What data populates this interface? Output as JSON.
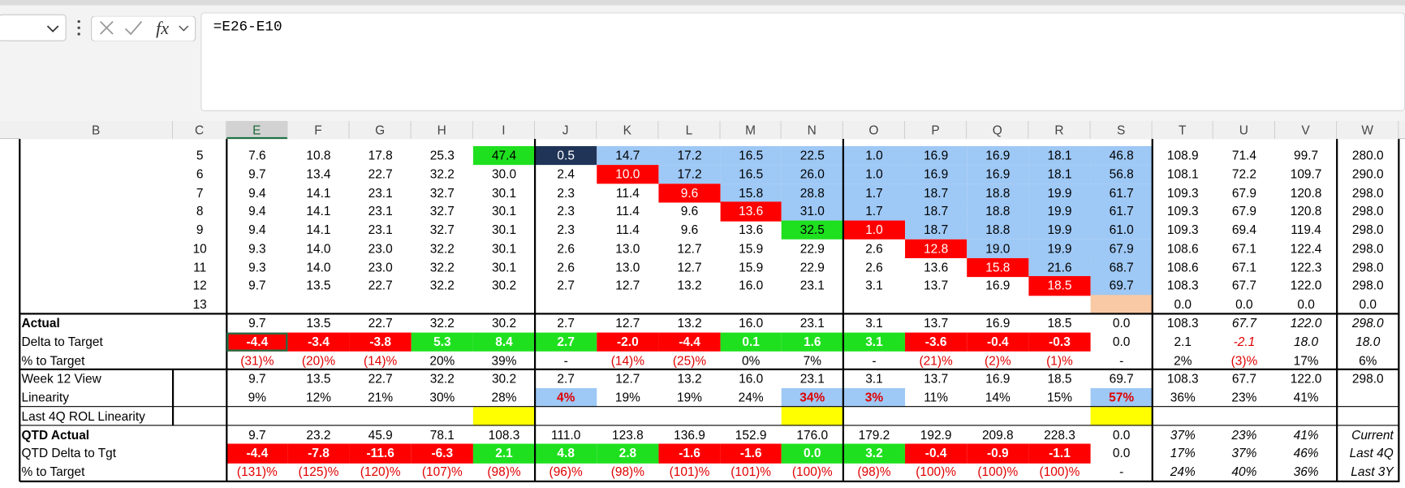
{
  "formula_bar": {
    "formula": "=E26-E10"
  },
  "columns": [
    "B",
    "C",
    "E",
    "F",
    "G",
    "H",
    "I",
    "J",
    "K",
    "L",
    "M",
    "N",
    "O",
    "P",
    "Q",
    "R",
    "S",
    "T",
    "U",
    "V",
    "W"
  ],
  "rows": [
    {
      "number": "5",
      "cells": [
        "7.6",
        "10.8",
        "17.8",
        "25.3",
        "47.4",
        "0.5",
        "14.7",
        "17.2",
        "16.5",
        "22.5",
        "1.0",
        "16.9",
        "16.9",
        "18.1",
        "46.8",
        "108.9",
        "71.4",
        "99.7",
        "280.0"
      ]
    },
    {
      "number": "6",
      "cells": [
        "9.7",
        "13.4",
        "22.7",
        "32.2",
        "30.0",
        "2.4",
        "10.0",
        "17.2",
        "16.5",
        "26.0",
        "1.0",
        "16.9",
        "16.9",
        "18.1",
        "56.8",
        "108.1",
        "72.2",
        "109.7",
        "290.0"
      ]
    },
    {
      "number": "7",
      "cells": [
        "9.4",
        "14.1",
        "23.1",
        "32.7",
        "30.1",
        "2.3",
        "11.4",
        "9.6",
        "15.8",
        "28.8",
        "1.7",
        "18.7",
        "18.8",
        "19.9",
        "61.7",
        "109.3",
        "67.9",
        "120.8",
        "298.0"
      ]
    },
    {
      "number": "8",
      "cells": [
        "9.4",
        "14.1",
        "23.1",
        "32.7",
        "30.1",
        "2.3",
        "11.4",
        "9.6",
        "13.6",
        "31.0",
        "1.7",
        "18.7",
        "18.8",
        "19.9",
        "61.7",
        "109.3",
        "67.9",
        "120.8",
        "298.0"
      ]
    },
    {
      "number": "9",
      "cells": [
        "9.4",
        "14.1",
        "23.1",
        "32.7",
        "30.1",
        "2.3",
        "11.4",
        "9.6",
        "13.6",
        "32.5",
        "1.0",
        "18.7",
        "18.8",
        "19.9",
        "61.0",
        "109.3",
        "69.4",
        "119.4",
        "298.0"
      ]
    },
    {
      "number": "10",
      "cells": [
        "9.3",
        "14.0",
        "23.0",
        "32.2",
        "30.1",
        "2.6",
        "13.0",
        "12.7",
        "15.9",
        "22.9",
        "2.6",
        "12.8",
        "19.0",
        "19.9",
        "67.9",
        "108.6",
        "67.1",
        "122.4",
        "298.0"
      ]
    },
    {
      "number": "11",
      "cells": [
        "9.3",
        "14.0",
        "23.0",
        "32.2",
        "30.1",
        "2.6",
        "13.0",
        "12.7",
        "15.9",
        "22.9",
        "2.6",
        "13.6",
        "15.8",
        "21.6",
        "68.7",
        "108.6",
        "67.1",
        "122.3",
        "298.0"
      ]
    },
    {
      "number": "12",
      "cells": [
        "9.7",
        "13.5",
        "22.7",
        "32.2",
        "30.2",
        "2.7",
        "12.7",
        "13.2",
        "16.0",
        "23.1",
        "3.1",
        "13.7",
        "16.9",
        "18.5",
        "69.7",
        "108.3",
        "67.7",
        "122.0",
        "298.0"
      ]
    },
    {
      "number": "13",
      "cells": [
        null,
        null,
        null,
        null,
        null,
        null,
        null,
        null,
        null,
        null,
        null,
        null,
        null,
        null,
        null,
        "0.0",
        "0.0",
        "0.0",
        "0.0"
      ]
    },
    {
      "label": "Actual",
      "cells": [
        "9.7",
        "13.5",
        "22.7",
        "32.2",
        "30.2",
        "2.7",
        "12.7",
        "13.2",
        "16.0",
        "23.1",
        "3.1",
        "13.7",
        "16.9",
        "18.5",
        "0.0",
        "108.3",
        "67.7",
        "122.0",
        "298.0"
      ]
    },
    {
      "label": "Delta to Target",
      "cells": [
        "-4.4",
        "-3.4",
        "-3.8",
        "5.3",
        "8.4",
        "2.7",
        "-2.0",
        "-4.4",
        "0.1",
        "1.6",
        "3.1",
        "-3.6",
        "-0.4",
        "-0.3",
        "0.0",
        "2.1",
        "-2.1",
        "18.0",
        "18.0"
      ]
    },
    {
      "label": "% to Target",
      "cells": [
        "(31)%",
        "(20)%",
        "(14)%",
        "20%",
        "39%",
        "-",
        "(14)%",
        "(25)%",
        "0%",
        "7%",
        "-",
        "(21)%",
        "(2)%",
        "(1)%",
        "-",
        "2%",
        "(3)%",
        "17%",
        "6%"
      ]
    },
    {
      "label": "Week 12 View",
      "cells": [
        "9.7",
        "13.5",
        "22.7",
        "32.2",
        "30.2",
        "2.7",
        "12.7",
        "13.2",
        "16.0",
        "23.1",
        "3.1",
        "13.7",
        "16.9",
        "18.5",
        "69.7",
        "108.3",
        "67.7",
        "122.0",
        "298.0"
      ]
    },
    {
      "label": "Linearity",
      "cells": [
        "9%",
        "12%",
        "21%",
        "30%",
        "28%",
        "4%",
        "19%",
        "19%",
        "24%",
        "34%",
        "3%",
        "11%",
        "14%",
        "15%",
        "57%",
        "36%",
        "23%",
        "41%",
        null
      ]
    },
    {
      "label": "Last 4Q ROL Linearity",
      "cells": [
        null,
        null,
        null,
        null,
        null,
        null,
        null,
        null,
        null,
        null,
        null,
        null,
        null,
        null,
        null,
        null,
        null,
        null,
        null
      ]
    },
    {
      "label": "QTD Actual",
      "cells": [
        "9.7",
        "23.2",
        "45.9",
        "78.1",
        "108.3",
        "111.0",
        "123.8",
        "136.9",
        "152.9",
        "176.0",
        "179.2",
        "192.9",
        "209.8",
        "228.3",
        "0.0",
        "37%",
        "23%",
        "41%",
        "Current"
      ]
    },
    {
      "label": "QTD Delta to Tgt",
      "cells": [
        "-4.4",
        "-7.8",
        "-11.6",
        "-6.3",
        "2.1",
        "4.8",
        "2.8",
        "-1.6",
        "-1.6",
        "0.0",
        "3.2",
        "-0.4",
        "-0.9",
        "-1.1",
        "0.0",
        "17%",
        "37%",
        "46%",
        "Last 4Q"
      ]
    },
    {
      "label": "% to Target",
      "cells": [
        "(131)%",
        "(125)%",
        "(120)%",
        "(107)%",
        "(98)%",
        "(96)%",
        "(98)%",
        "(101)%",
        "(101)%",
        "(100)%",
        "(98)%",
        "(100)%",
        "(100)%",
        "(100)%",
        "-",
        "24%",
        "40%",
        "36%",
        "Last 3Y"
      ]
    }
  ]
}
